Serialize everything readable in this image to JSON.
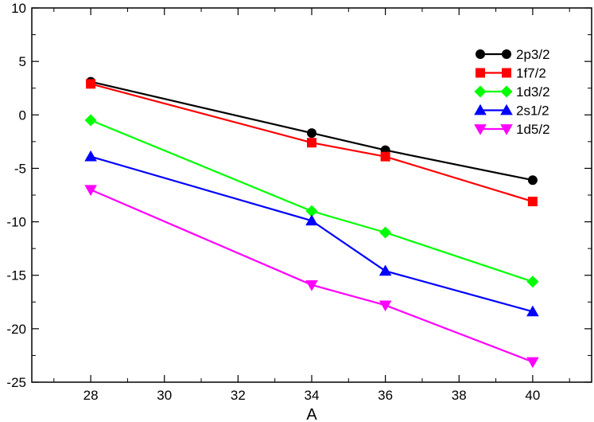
{
  "chart_data": {
    "type": "line",
    "title": "",
    "xlabel": "A",
    "ylabel": "",
    "xlim": [
      26.4,
      41.6
    ],
    "ylim": [
      -25,
      10
    ],
    "x_ticks": [
      28,
      30,
      32,
      34,
      36,
      38,
      40
    ],
    "y_ticks": [
      10,
      5,
      0,
      -5,
      -10,
      -15,
      -20,
      -25
    ],
    "grid": false,
    "legend_position": "top-right",
    "series": [
      {
        "name": "2p3/2",
        "color": "#000000",
        "marker": "circle",
        "x": [
          28,
          34,
          36,
          40
        ],
        "y": [
          3.1,
          -1.7,
          -3.3,
          -6.1
        ]
      },
      {
        "name": "1f7/2",
        "color": "#ff0000",
        "marker": "square",
        "x": [
          28,
          34,
          36,
          40
        ],
        "y": [
          2.9,
          -2.6,
          -3.9,
          -8.1
        ]
      },
      {
        "name": "1d3/2",
        "color": "#00ff00",
        "marker": "diamond",
        "x": [
          28,
          34,
          36,
          40
        ],
        "y": [
          -0.5,
          -9.0,
          -11.0,
          -15.6
        ]
      },
      {
        "name": "2s1/2",
        "color": "#0000ff",
        "marker": "triangle-up",
        "x": [
          28,
          34,
          36,
          40
        ],
        "y": [
          -3.9,
          -9.9,
          -14.6,
          -18.4
        ]
      },
      {
        "name": "1d5/2",
        "color": "#ff00ff",
        "marker": "triangle-down",
        "x": [
          28,
          34,
          36,
          40
        ],
        "y": [
          -7.0,
          -15.9,
          -17.8,
          -23.1
        ]
      }
    ]
  }
}
